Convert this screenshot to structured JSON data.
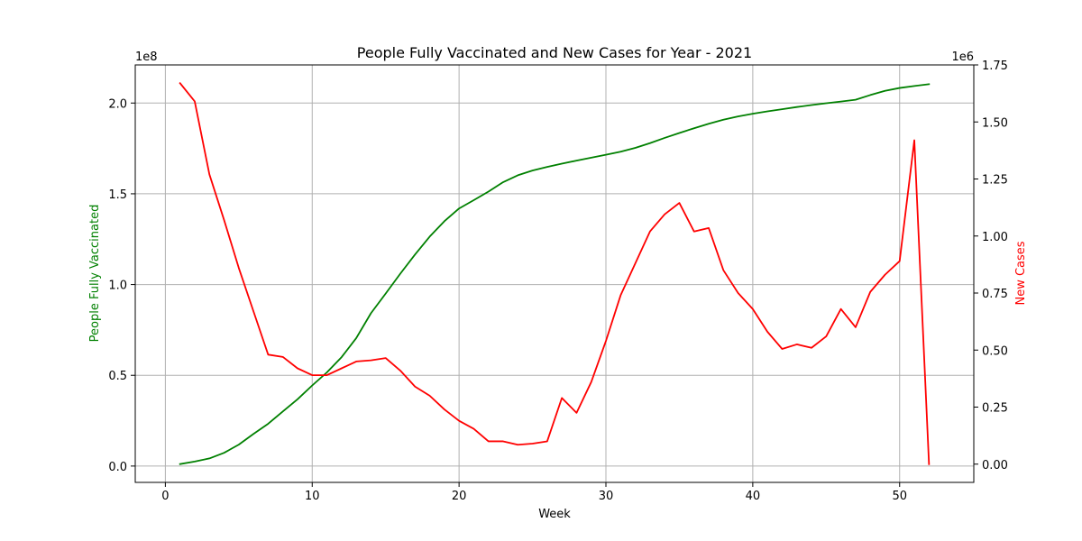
{
  "chart_data": {
    "type": "line",
    "title": "People Fully Vaccinated and New Cases for Year - 2021",
    "xlabel": "Week",
    "ylabel_left": "People Fully Vaccinated",
    "ylabel_right": "New Cases",
    "left_multiplier": "1e8",
    "right_multiplier": "1e6",
    "xlim": [
      -2.05,
      55.05
    ],
    "ylim_left": [
      -9000000,
      221000000
    ],
    "ylim_right": [
      -80000,
      1750000
    ],
    "xticks": [
      0,
      10,
      20,
      30,
      40,
      50
    ],
    "yticks_left": [
      0,
      50000000,
      100000000,
      150000000,
      200000000
    ],
    "yticks_left_labels": [
      "0.0",
      "0.5",
      "1.0",
      "1.5",
      "2.0"
    ],
    "yticks_right": [
      0,
      250000,
      500000,
      750000,
      1000000,
      1250000,
      1500000,
      1750000
    ],
    "yticks_right_labels": [
      "0.00",
      "0.25",
      "0.50",
      "0.75",
      "1.00",
      "1.25",
      "1.50",
      "1.75"
    ],
    "grid": true,
    "x": [
      1,
      2,
      3,
      4,
      5,
      6,
      7,
      8,
      9,
      10,
      11,
      12,
      13,
      14,
      15,
      16,
      17,
      18,
      19,
      20,
      21,
      22,
      23,
      24,
      25,
      26,
      27,
      28,
      29,
      30,
      31,
      32,
      33,
      34,
      35,
      36,
      37,
      38,
      39,
      40,
      41,
      42,
      43,
      44,
      45,
      46,
      47,
      48,
      49,
      50,
      51,
      52
    ],
    "series": [
      {
        "axis": "left",
        "color": "#008000",
        "values": [
          1100000,
          2500000,
          4200000,
          7300000,
          11800000,
          17700000,
          23300000,
          30100000,
          36800000,
          44400000,
          51600000,
          60000000,
          70500000,
          84200000,
          95000000,
          106000000,
          116500000,
          126400000,
          134900000,
          141900000,
          146500000,
          151200000,
          156400000,
          160200000,
          162800000,
          164800000,
          166600000,
          168300000,
          169900000,
          171500000,
          173200000,
          175300000,
          177900000,
          180800000,
          183500000,
          186100000,
          188600000,
          190800000,
          192600000,
          194100000,
          195400000,
          196600000,
          197800000,
          198900000,
          199900000,
          200800000,
          201800000,
          204400000,
          206700000,
          208300000,
          209400000,
          210400000
        ]
      },
      {
        "axis": "right",
        "color": "#ff0000",
        "values": [
          1670000,
          1590000,
          1270000,
          1070000,
          860000,
          670000,
          480000,
          470000,
          420000,
          390000,
          390000,
          420000,
          450000,
          455000,
          465000,
          410000,
          340000,
          300000,
          240000,
          190000,
          155000,
          100000,
          100000,
          85000,
          90000,
          100000,
          290000,
          225000,
          360000,
          540000,
          740000,
          880000,
          1020000,
          1095000,
          1145000,
          1020000,
          1035000,
          850000,
          750000,
          680000,
          580000,
          505000,
          525000,
          510000,
          560000,
          680000,
          600000,
          755000,
          830000,
          890000,
          1420000,
          0
        ]
      }
    ]
  }
}
